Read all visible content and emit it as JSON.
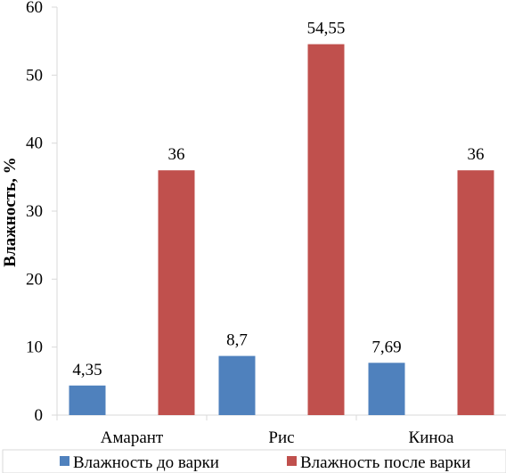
{
  "chart_data": {
    "type": "bar",
    "title": "",
    "xlabel": "",
    "ylabel": "Влажность, %",
    "ylim": [
      0,
      60
    ],
    "yticks": [
      0,
      10,
      20,
      30,
      40,
      50,
      60
    ],
    "grid": false,
    "legend_position": "bottom",
    "categories": [
      "Амарант",
      "Рис",
      "Киноа"
    ],
    "series": [
      {
        "name": "Влажность до варки",
        "color": "#4f81bd",
        "values": [
          4.35,
          8.7,
          7.69
        ],
        "labels": [
          "4,35",
          "8,7",
          "7,69"
        ]
      },
      {
        "name": "Влажность после варки",
        "color": "#c0504d",
        "values": [
          36,
          54.55,
          36
        ],
        "labels": [
          "36",
          "54,55",
          "36"
        ]
      }
    ]
  }
}
